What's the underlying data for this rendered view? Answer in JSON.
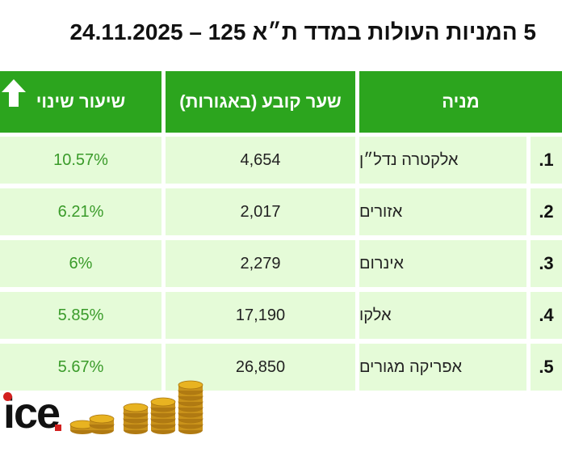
{
  "title": "5 המניות העולות במדד ת״א 125 – 24.11.2025",
  "header": {
    "stock": "מניה",
    "price": "שער קובע (באגורות)",
    "change": "שיעור שינוי",
    "change_icon": "up-arrow-icon"
  },
  "rows": [
    {
      "num": ".1",
      "name": "אלקטרה נדל״ן",
      "price": "4,654",
      "change": "10.57%"
    },
    {
      "num": ".2",
      "name": "אזורים",
      "price": "2,017",
      "change": "6.21%"
    },
    {
      "num": ".3",
      "name": "אינרום",
      "price": "2,279",
      "change": "6%"
    },
    {
      "num": ".4",
      "name": "אלקו",
      "price": "17,190",
      "change": "5.85%"
    },
    {
      "num": ".5",
      "name": "אפריקה מגורים",
      "price": "26,850",
      "change": "5.67%"
    }
  ],
  "logo": {
    "text": "ice",
    "icon": "coins-stack-icon"
  },
  "colors": {
    "header_bg": "#2ca51e",
    "row_bg": "#e5fbd8",
    "change_text": "#3a9b2a",
    "logo_accent": "#d3201f",
    "coin": "#e8b321"
  }
}
